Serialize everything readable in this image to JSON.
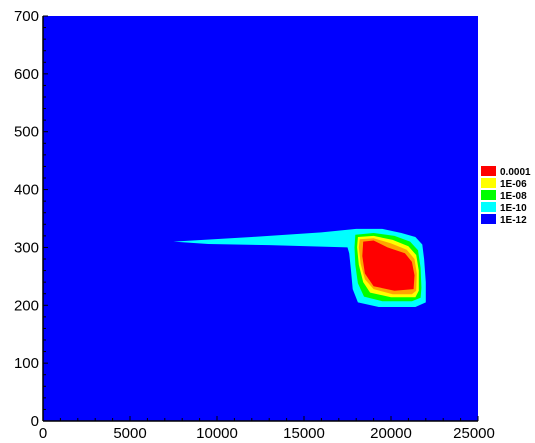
{
  "chart_data": {
    "type": "heatmap",
    "title": "",
    "xlabel": "",
    "ylabel": "",
    "xlim": [
      0,
      25000
    ],
    "ylim": [
      0,
      700
    ],
    "x_ticks": [
      0,
      5000,
      10000,
      15000,
      20000,
      25000
    ],
    "x_tick_labels": [
      "0",
      "5000",
      "10000",
      "15000",
      "20000",
      "25000"
    ],
    "y_ticks": [
      0,
      100,
      200,
      300,
      400,
      500,
      600,
      700
    ],
    "y_tick_labels": [
      "0",
      "100",
      "200",
      "300",
      "400",
      "500",
      "600",
      "700"
    ],
    "grid": false,
    "background_level": "1E-12",
    "legend": {
      "placement": "right",
      "entries": [
        {
          "label": "0.0001",
          "color": "#ff0000"
        },
        {
          "label": "1E-06",
          "color": "#ffff00"
        },
        {
          "label": "1E-08",
          "color": "#00ff00"
        },
        {
          "label": "1E-10",
          "color": "#00ffff"
        },
        {
          "label": "1E-12",
          "color": "#0000ff"
        }
      ]
    },
    "contours": [
      {
        "level": "1E-12",
        "color": "#00ffff",
        "polygon": [
          [
            7500,
            310
          ],
          [
            12000,
            318
          ],
          [
            16000,
            326
          ],
          [
            18000,
            332
          ],
          [
            19500,
            332
          ],
          [
            20600,
            325
          ],
          [
            21400,
            318
          ],
          [
            21800,
            305
          ],
          [
            21900,
            280
          ],
          [
            22000,
            240
          ],
          [
            22000,
            205
          ],
          [
            21400,
            197
          ],
          [
            19300,
            197
          ],
          [
            18100,
            205
          ],
          [
            17800,
            228
          ],
          [
            17700,
            260
          ],
          [
            17600,
            290
          ],
          [
            17500,
            300
          ],
          [
            13000,
            304
          ],
          [
            9500,
            306
          ]
        ]
      },
      {
        "level": "1E-10",
        "color": "#00ff00",
        "polygon": [
          [
            17950,
            322
          ],
          [
            19000,
            325
          ],
          [
            20200,
            320
          ],
          [
            21100,
            310
          ],
          [
            21550,
            295
          ],
          [
            21700,
            265
          ],
          [
            21750,
            230
          ],
          [
            21700,
            213
          ],
          [
            21200,
            207
          ],
          [
            19500,
            207
          ],
          [
            18450,
            215
          ],
          [
            18100,
            238
          ],
          [
            17950,
            270
          ],
          [
            17900,
            300
          ]
        ]
      },
      {
        "level": "1E-08",
        "color": "#ffff00",
        "polygon": [
          [
            18100,
            318
          ],
          [
            19000,
            320
          ],
          [
            20100,
            313
          ],
          [
            21000,
            302
          ],
          [
            21450,
            287
          ],
          [
            21600,
            260
          ],
          [
            21600,
            225
          ],
          [
            21400,
            214
          ],
          [
            20000,
            214
          ],
          [
            18800,
            222
          ],
          [
            18400,
            240
          ],
          [
            18150,
            270
          ],
          [
            18050,
            300
          ]
        ]
      },
      {
        "level": "1E-06",
        "color": "#ffa500",
        "polygon": [
          [
            18200,
            314
          ],
          [
            19000,
            316
          ],
          [
            20000,
            307
          ],
          [
            20900,
            296
          ],
          [
            21350,
            280
          ],
          [
            21480,
            255
          ],
          [
            21450,
            225
          ],
          [
            21200,
            219
          ],
          [
            20100,
            219
          ],
          [
            19000,
            228
          ],
          [
            18500,
            245
          ],
          [
            18250,
            272
          ],
          [
            18150,
            300
          ]
        ]
      },
      {
        "level": "0.0001",
        "color": "#ff0000",
        "polygon": [
          [
            18400,
            310
          ],
          [
            19000,
            312
          ],
          [
            19800,
            300
          ],
          [
            20800,
            290
          ],
          [
            21200,
            275
          ],
          [
            21350,
            252
          ],
          [
            21300,
            228
          ],
          [
            20200,
            225
          ],
          [
            19000,
            233
          ],
          [
            18500,
            255
          ],
          [
            18350,
            285
          ]
        ]
      }
    ]
  }
}
